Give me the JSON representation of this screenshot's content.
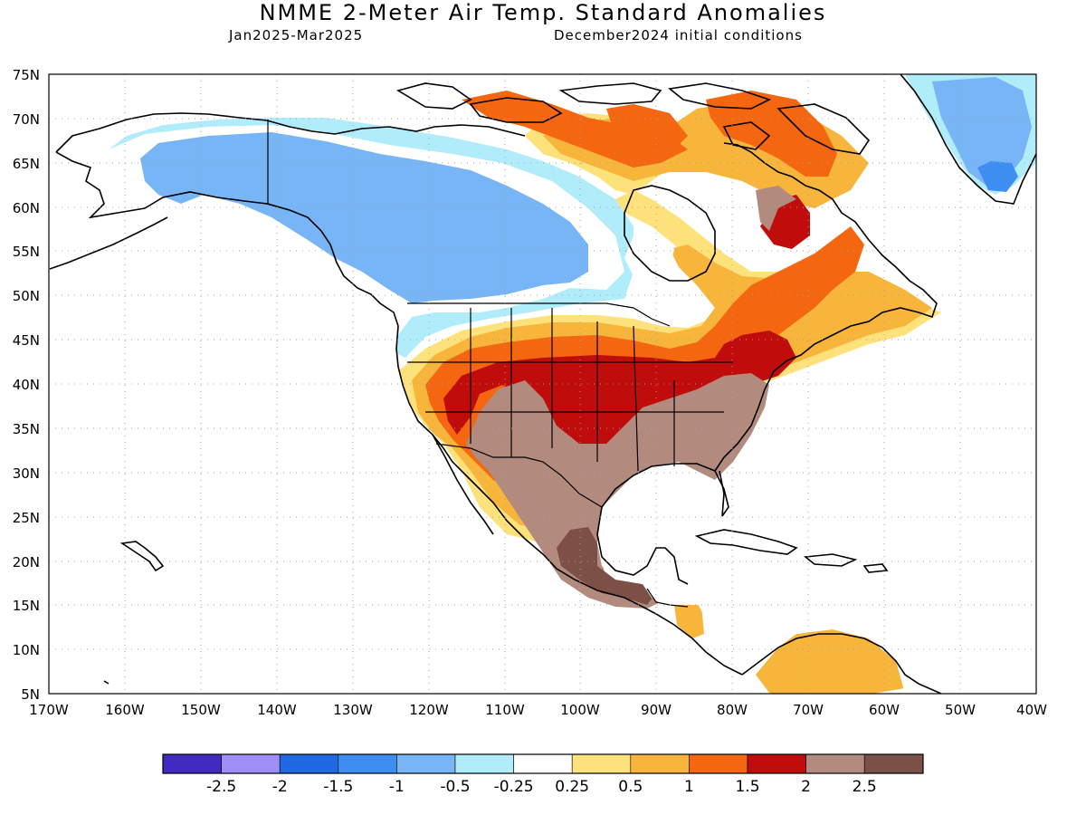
{
  "header": {
    "title": "NMME 2-Meter Air Temp. Standard Anomalies",
    "period": "Jan2025-Mar2025",
    "initial_conditions": "December2024 initial conditions"
  },
  "axes": {
    "lat_labels": [
      "75N",
      "70N",
      "65N",
      "60N",
      "55N",
      "50N",
      "45N",
      "40N",
      "35N",
      "30N",
      "25N",
      "20N",
      "15N",
      "10N",
      "5N"
    ],
    "lon_labels": [
      "170W",
      "160W",
      "150W",
      "140W",
      "130W",
      "120W",
      "110W",
      "100W",
      "90W",
      "80W",
      "70W",
      "60W",
      "50W",
      "40W"
    ]
  },
  "colorbar": {
    "colors": [
      "#3f2bbf",
      "#a08ef7",
      "#2068e4",
      "#3e8ef2",
      "#78b5f6",
      "#b0ecfa",
      "#ffffff",
      "#fde27c",
      "#f7b53c",
      "#f4660f",
      "#c10c0c",
      "#b38a7e",
      "#7c5046"
    ],
    "labels": [
      "-2.5",
      "-2",
      "-1.5",
      "-1",
      "-0.5",
      "-0.25",
      "0.25",
      "0.5",
      "1",
      "1.5",
      "2",
      "2.5"
    ]
  }
}
